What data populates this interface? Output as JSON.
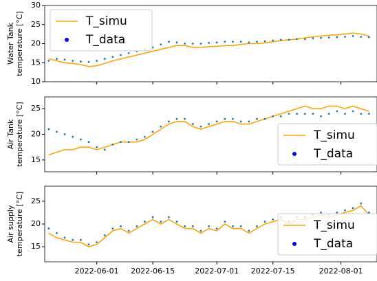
{
  "chart_data": [
    {
      "type": "line",
      "ylabel": [
        "Water Tank",
        "temperature [°C]"
      ],
      "x": [
        "2022-05-20",
        "2022-05-22",
        "2022-05-24",
        "2022-05-26",
        "2022-05-28",
        "2022-05-30",
        "2022-06-01",
        "2022-06-03",
        "2022-06-05",
        "2022-06-07",
        "2022-06-09",
        "2022-06-11",
        "2022-06-13",
        "2022-06-15",
        "2022-06-17",
        "2022-06-19",
        "2022-06-21",
        "2022-06-23",
        "2022-06-25",
        "2022-06-27",
        "2022-06-29",
        "2022-07-01",
        "2022-07-03",
        "2022-07-05",
        "2022-07-07",
        "2022-07-09",
        "2022-07-11",
        "2022-07-13",
        "2022-07-15",
        "2022-07-17",
        "2022-07-19",
        "2022-07-21",
        "2022-07-23",
        "2022-07-25",
        "2022-07-27",
        "2022-07-29",
        "2022-07-31",
        "2022-08-02",
        "2022-08-04",
        "2022-08-06",
        "2022-08-08"
      ],
      "series": [
        {
          "name": "T_simu",
          "color": "#ffa500",
          "style": "line",
          "values": [
            16,
            15.5,
            15,
            14.8,
            14.5,
            14,
            14.2,
            14.8,
            15.5,
            16,
            16.5,
            17,
            17.5,
            18,
            18.5,
            19,
            19.5,
            19.5,
            19,
            19,
            19.2,
            19.3,
            19.5,
            19.5,
            19.8,
            20,
            20,
            20.2,
            20.5,
            20.8,
            21,
            21.2,
            21.5,
            21.8,
            22,
            22.2,
            22.3,
            22.5,
            22.8,
            22.5,
            22
          ]
        },
        {
          "name": "T_data",
          "color": "#1f77b4",
          "legend_marker_color": "#0000ff",
          "style": "dots",
          "values": [
            15.5,
            16,
            15.8,
            15.5,
            15.3,
            15.2,
            15.5,
            16,
            16.5,
            17,
            17.5,
            18,
            18.5,
            19,
            19.8,
            20.5,
            20.3,
            20,
            20,
            20,
            20.2,
            20.3,
            20.5,
            20.5,
            20.5,
            20.3,
            20.5,
            20.6,
            20.8,
            21,
            21,
            21.2,
            21.2,
            21.4,
            21.5,
            21.6,
            21.7,
            21.8,
            22,
            21.8,
            21.7
          ]
        }
      ],
      "xlim": [
        "2022-05-19",
        "2022-08-10"
      ],
      "xticks": [
        "2022-06-01",
        "2022-06-15",
        "2022-07-01",
        "2022-07-15",
        "2022-08-01"
      ],
      "ylim": [
        10,
        30
      ],
      "yticks": [
        10,
        15,
        20,
        25,
        30
      ],
      "legend": "upper left"
    },
    {
      "type": "line",
      "ylabel": [
        "Air Tank",
        "temperature [°C]"
      ],
      "x": [
        "2022-05-20",
        "2022-05-22",
        "2022-05-24",
        "2022-05-26",
        "2022-05-28",
        "2022-05-30",
        "2022-06-01",
        "2022-06-03",
        "2022-06-05",
        "2022-06-07",
        "2022-06-09",
        "2022-06-11",
        "2022-06-13",
        "2022-06-15",
        "2022-06-17",
        "2022-06-19",
        "2022-06-21",
        "2022-06-23",
        "2022-06-25",
        "2022-06-27",
        "2022-06-29",
        "2022-07-01",
        "2022-07-03",
        "2022-07-05",
        "2022-07-07",
        "2022-07-09",
        "2022-07-11",
        "2022-07-13",
        "2022-07-15",
        "2022-07-17",
        "2022-07-19",
        "2022-07-21",
        "2022-07-23",
        "2022-07-25",
        "2022-07-27",
        "2022-07-29",
        "2022-07-31",
        "2022-08-02",
        "2022-08-04",
        "2022-08-06",
        "2022-08-08"
      ],
      "series": [
        {
          "name": "T_simu",
          "color": "#ffa500",
          "style": "line",
          "values": [
            16,
            16.5,
            17,
            17,
            17.5,
            17.5,
            17,
            17.5,
            18,
            18.5,
            18.5,
            18.5,
            19,
            20,
            21,
            22,
            22.5,
            22.5,
            21.5,
            21,
            21.5,
            22,
            22.5,
            22.5,
            22,
            22,
            22.5,
            23,
            23.5,
            24,
            24.5,
            25,
            25.5,
            25,
            25,
            25.5,
            25.5,
            25,
            25.5,
            25,
            24.5
          ]
        },
        {
          "name": "T_data",
          "color": "#1f77b4",
          "legend_marker_color": "#0000ff",
          "style": "dots",
          "values": [
            21,
            20.5,
            20,
            19.5,
            19,
            18.5,
            17.5,
            17,
            18,
            18.5,
            18.5,
            19,
            19.5,
            20.5,
            21.5,
            22.5,
            23,
            23,
            22,
            21.5,
            22,
            22.5,
            23,
            23,
            22.5,
            22.5,
            23,
            23,
            23.5,
            23.5,
            24,
            24,
            24,
            24,
            23.5,
            24,
            24.5,
            24,
            24.5,
            24,
            24
          ]
        }
      ],
      "xlim": [
        "2022-05-19",
        "2022-08-10"
      ],
      "xticks": [
        "2022-06-01",
        "2022-06-15",
        "2022-07-01",
        "2022-07-15",
        "2022-08-01"
      ],
      "ylim": [
        12.7,
        27.3
      ],
      "yticks": [
        15,
        20,
        25
      ],
      "legend": "lower right"
    },
    {
      "type": "line",
      "ylabel": [
        "Air supply",
        "temperature [°C]"
      ],
      "x": [
        "2022-05-20",
        "2022-05-22",
        "2022-05-24",
        "2022-05-26",
        "2022-05-28",
        "2022-05-30",
        "2022-06-01",
        "2022-06-03",
        "2022-06-05",
        "2022-06-07",
        "2022-06-09",
        "2022-06-11",
        "2022-06-13",
        "2022-06-15",
        "2022-06-17",
        "2022-06-19",
        "2022-06-21",
        "2022-06-23",
        "2022-06-25",
        "2022-06-27",
        "2022-06-29",
        "2022-07-01",
        "2022-07-03",
        "2022-07-05",
        "2022-07-07",
        "2022-07-09",
        "2022-07-11",
        "2022-07-13",
        "2022-07-15",
        "2022-07-17",
        "2022-07-19",
        "2022-07-21",
        "2022-07-23",
        "2022-07-25",
        "2022-07-27",
        "2022-07-29",
        "2022-07-31",
        "2022-08-02",
        "2022-08-04",
        "2022-08-06",
        "2022-08-08"
      ],
      "series": [
        {
          "name": "T_simu",
          "color": "#ffa500",
          "style": "line",
          "values": [
            18,
            17,
            16.5,
            16,
            16,
            15,
            15.5,
            17,
            18.5,
            19,
            18,
            19,
            20,
            21,
            20,
            21,
            20,
            19,
            19,
            18,
            19,
            18.5,
            20,
            19,
            19,
            18,
            19,
            20,
            20.5,
            21,
            20,
            21,
            21,
            21.5,
            22,
            21.5,
            22,
            22.5,
            23,
            24,
            22
          ]
        },
        {
          "name": "T_data",
          "color": "#1f77b4",
          "legend_marker_color": "#0000ff",
          "style": "dots",
          "values": [
            19,
            18,
            17,
            16.5,
            16.5,
            15.5,
            16,
            17.5,
            19,
            19.5,
            18.5,
            19.5,
            20.5,
            21.5,
            20.5,
            21.5,
            20.5,
            19.5,
            19.5,
            18.5,
            19.5,
            19,
            20.5,
            19.5,
            19.5,
            18.5,
            19.5,
            20.5,
            21,
            21.5,
            20.5,
            21.5,
            21.5,
            22,
            22.5,
            22,
            22.5,
            23,
            23.5,
            24.5,
            22.5
          ]
        }
      ],
      "xlim": [
        "2022-05-19",
        "2022-08-10"
      ],
      "xticks": [
        "2022-06-01",
        "2022-06-15",
        "2022-07-01",
        "2022-07-15",
        "2022-08-01"
      ],
      "xticklabels": true,
      "ylim": [
        11.7,
        28.3
      ],
      "yticks": [
        15,
        20,
        25
      ],
      "legend": "lower right"
    }
  ]
}
